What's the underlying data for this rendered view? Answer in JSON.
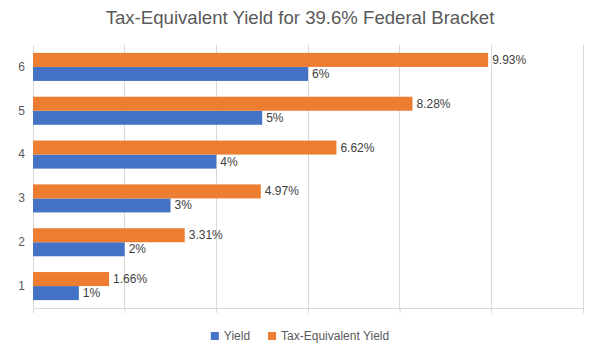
{
  "chart_data": {
    "type": "bar",
    "orientation": "horizontal",
    "title": "Tax-Equivalent Yield for 39.6% Federal Bracket",
    "categories": [
      "1",
      "2",
      "3",
      "4",
      "5",
      "6"
    ],
    "series": [
      {
        "name": "Yield",
        "color": "#4472c4",
        "values": [
          1,
          2,
          3,
          4,
          5,
          6
        ],
        "value_labels": [
          "1%",
          "2%",
          "3%",
          "4%",
          "5%",
          "6%"
        ]
      },
      {
        "name": "Tax-Equivalent Yield",
        "color": "#ed7d31",
        "values": [
          1.66,
          3.31,
          4.97,
          6.62,
          8.28,
          9.93
        ],
        "value_labels": [
          "1.66%",
          "3.31%",
          "4.97%",
          "6.62%",
          "8.28%",
          "9.93%"
        ]
      }
    ],
    "xlim": [
      0,
      12
    ],
    "xticks": [
      0,
      2,
      4,
      6,
      8,
      10,
      12
    ],
    "grid": true,
    "data_labels": true,
    "tick_labels": "y",
    "legend": "bottom"
  }
}
